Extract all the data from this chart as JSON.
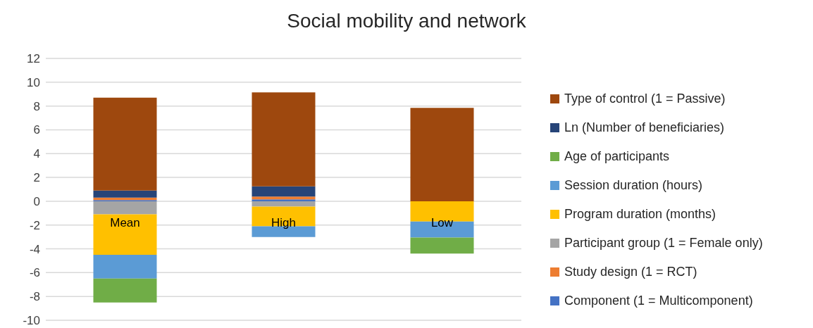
{
  "chart_data": {
    "type": "bar",
    "title": "Social mobility and network",
    "stacked": true,
    "categories": [
      "Mean",
      "High",
      "Low"
    ],
    "series": [
      {
        "name": "Component (1 = Multicomponent)",
        "color": "#4472c4",
        "values": [
          0.1,
          0.15,
          0
        ]
      },
      {
        "name": "Study design (1 = RCT)",
        "color": "#ed7d31",
        "values": [
          0.2,
          0.25,
          0
        ]
      },
      {
        "name": "Participant group (1 = Female only)",
        "color": "#a5a5a5",
        "values": [
          -1.1,
          -0.45,
          0
        ]
      },
      {
        "name": "Program duration (months)",
        "color": "#ffc000",
        "values": [
          -3.4,
          -1.65,
          -1.7
        ]
      },
      {
        "name": "Session duration (hours)",
        "color": "#5b9bd5",
        "values": [
          -2.0,
          -0.9,
          -1.35
        ]
      },
      {
        "name": "Age of participants",
        "color": "#70ad47",
        "values": [
          -2.0,
          0,
          -1.35
        ]
      },
      {
        "name": "Ln (Number of beneficiaries)",
        "color": "#264478",
        "values": [
          0.6,
          0.85,
          0
        ]
      },
      {
        "name": "Type of control (1 = Passive)",
        "color": "#9e480e",
        "values": [
          7.8,
          7.9,
          7.85
        ]
      }
    ],
    "ylim": [
      -10,
      12
    ],
    "yticks": [
      -10,
      -8,
      -6,
      -4,
      -2,
      0,
      2,
      4,
      6,
      8,
      10,
      12
    ],
    "grid": "y",
    "legend": "right"
  }
}
